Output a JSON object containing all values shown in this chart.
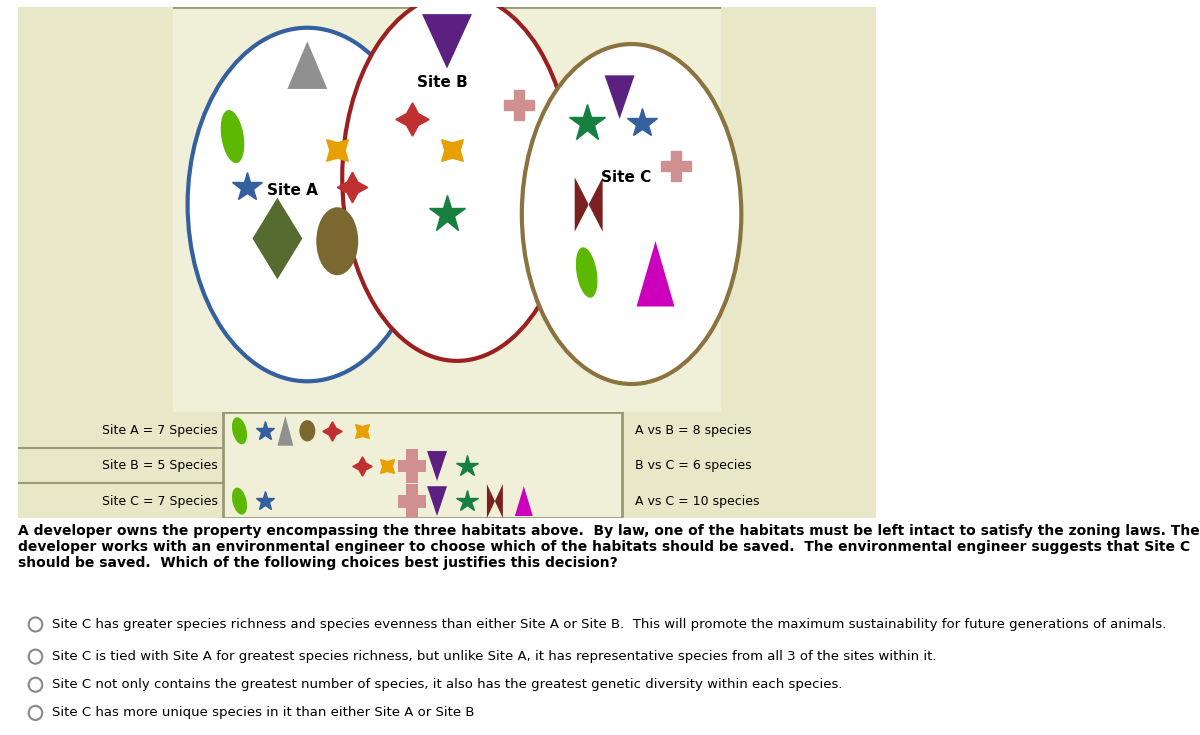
{
  "bg_color": "#f0f0d8",
  "left_col_color": "#e8e8c8",
  "right_col_color": "#e8e8c8",
  "border_color": "#999977",
  "white": "#ffffff",
  "site_a_color": "#3560A0",
  "site_b_color": "#9B2020",
  "site_c_color": "#8B7340",
  "question_text": "A developer owns the property encompassing the three habitats above.  By law, one of the habitats must be left intact to satisfy the zoning laws. The developer works with an environmental engineer to choose which of the habitats should be saved.  The environmental engineer suggests that Site C should be saved.  Which of the following choices best justifies this decision?",
  "choices": [
    "Site C has greater species richness and species evenness than either Site A or Site B.  This will promote the maximum sustainability for future generations of animals.",
    "Site C is tied with Site A for greatest species richness, but unlike Site A, it has representative species from all 3 of the sites within it.",
    "Site C not only contains the greatest number of species, it also has the greatest genetic diversity within each species.",
    "Site C has more unique species in it than either Site A or Site B"
  ],
  "legend_labels": [
    "Site A = 7 Species",
    "Site B = 5 Species",
    "Site C = 7 Species"
  ],
  "overlap_text": [
    "A vs B = 8 species",
    "B vs C = 6 species",
    "A vs C = 10 species"
  ]
}
